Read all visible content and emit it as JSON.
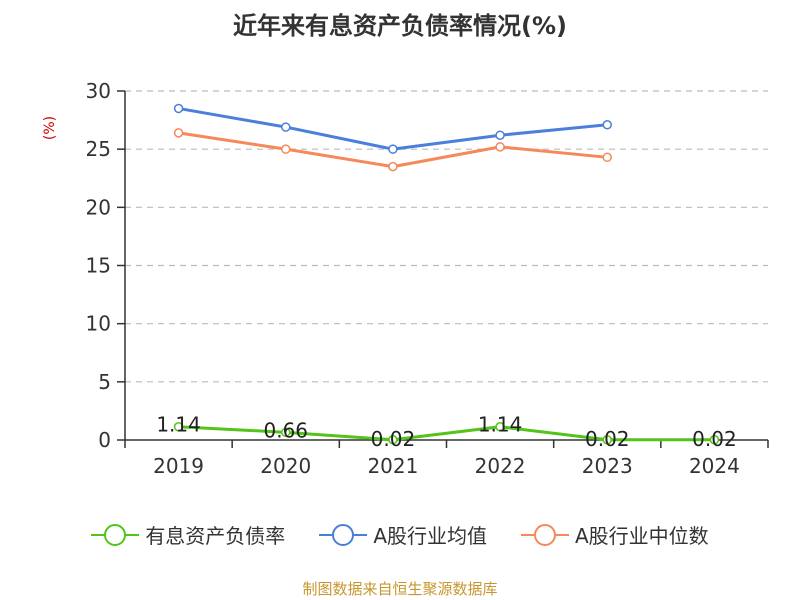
{
  "chart_data": {
    "type": "line",
    "title": "近年来有息资产负债率情况(%)",
    "ylabel": "(%)",
    "categories": [
      "2019",
      "2020",
      "2021",
      "2022",
      "2023",
      "2024"
    ],
    "yticks": [
      "0",
      "5",
      "10",
      "15",
      "20",
      "25",
      "30"
    ],
    "ylim": [
      0,
      30
    ],
    "grid": true,
    "legend_position": "bottom",
    "series": [
      {
        "name": "有息资产负债率",
        "color": "#52c41a",
        "values": [
          1.14,
          0.66,
          0.02,
          1.14,
          0.02,
          0.02
        ],
        "labels": [
          "1.14",
          "0.66",
          "0.02",
          "1.14",
          "0.02",
          "0.02"
        ]
      },
      {
        "name": "A股行业均值",
        "color": "#4a7fdb",
        "values": [
          28.5,
          26.9,
          25.0,
          26.2,
          27.1,
          null
        ]
      },
      {
        "name": "A股行业中位数",
        "color": "#f5895a",
        "values": [
          26.4,
          25.0,
          23.5,
          25.2,
          24.3,
          null
        ]
      }
    ]
  },
  "source": "制图数据来自恒生聚源数据库"
}
